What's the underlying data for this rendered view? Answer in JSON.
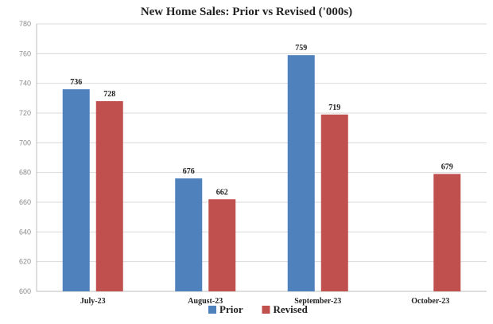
{
  "chart_data": {
    "type": "bar",
    "title": "New Home Sales: Prior vs Revised ('000s)",
    "categories": [
      "July-23",
      "August-23",
      "September-23",
      "October-23"
    ],
    "series": [
      {
        "name": "Prior",
        "values": [
          736,
          676,
          759,
          null
        ],
        "color": "#4f81bd"
      },
      {
        "name": "Revised",
        "values": [
          728,
          662,
          719,
          679
        ],
        "color": "#c0504d"
      }
    ],
    "ylim": [
      600,
      780
    ],
    "yticks": [
      600,
      620,
      640,
      660,
      680,
      700,
      720,
      740,
      760,
      780
    ],
    "grid": true,
    "legend_position": "bottom"
  }
}
